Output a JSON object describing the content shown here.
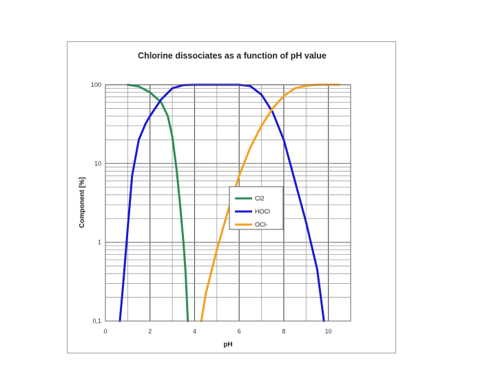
{
  "chart_data": {
    "type": "line",
    "title": "Chlorine dissociates as a function of pH value",
    "xlabel": "pH",
    "ylabel": "Component [%]",
    "xlim": [
      0,
      11
    ],
    "ylim": [
      0.1,
      100
    ],
    "yscale": "log",
    "x_ticks": [
      "0",
      "2",
      "4",
      "6",
      "8",
      "10"
    ],
    "x_tick_values": [
      0,
      2,
      4,
      6,
      8,
      10
    ],
    "y_ticks": [
      "0,1",
      "1",
      "10",
      "100"
    ],
    "y_tick_values": [
      0.1,
      1,
      10,
      100
    ],
    "grid": true,
    "legend_position": "center",
    "series": [
      {
        "name": "Cl2",
        "color": "#2e8b57",
        "points": [
          [
            1.0,
            100
          ],
          [
            1.5,
            95
          ],
          [
            2.0,
            80
          ],
          [
            2.5,
            60
          ],
          [
            2.8,
            40
          ],
          [
            3.0,
            22
          ],
          [
            3.2,
            8
          ],
          [
            3.35,
            3
          ],
          [
            3.5,
            1
          ],
          [
            3.6,
            0.4
          ],
          [
            3.7,
            0.1
          ]
        ]
      },
      {
        "name": "HOCl",
        "color": "#1a1acd",
        "points": [
          [
            0.65,
            0.1
          ],
          [
            0.8,
            0.3
          ],
          [
            1.0,
            1.5
          ],
          [
            1.2,
            7
          ],
          [
            1.5,
            20
          ],
          [
            1.8,
            32
          ],
          [
            2.0,
            40
          ],
          [
            2.5,
            65
          ],
          [
            3.0,
            90
          ],
          [
            3.5,
            99
          ],
          [
            4.0,
            100
          ],
          [
            6.0,
            100
          ],
          [
            6.5,
            96
          ],
          [
            7.0,
            75
          ],
          [
            7.5,
            45
          ],
          [
            8.0,
            20
          ],
          [
            8.5,
            6
          ],
          [
            9.0,
            1.8
          ],
          [
            9.5,
            0.45
          ],
          [
            9.8,
            0.1
          ]
        ]
      },
      {
        "name": "OCl-",
        "color": "#f5a020",
        "points": [
          [
            4.3,
            0.1
          ],
          [
            4.5,
            0.22
          ],
          [
            5.0,
            0.8
          ],
          [
            5.5,
            2.5
          ],
          [
            6.0,
            7
          ],
          [
            6.5,
            16
          ],
          [
            7.0,
            30
          ],
          [
            7.5,
            50
          ],
          [
            8.0,
            72
          ],
          [
            8.5,
            90
          ],
          [
            9.0,
            97
          ],
          [
            9.5,
            100
          ],
          [
            10.5,
            100
          ]
        ]
      }
    ]
  }
}
